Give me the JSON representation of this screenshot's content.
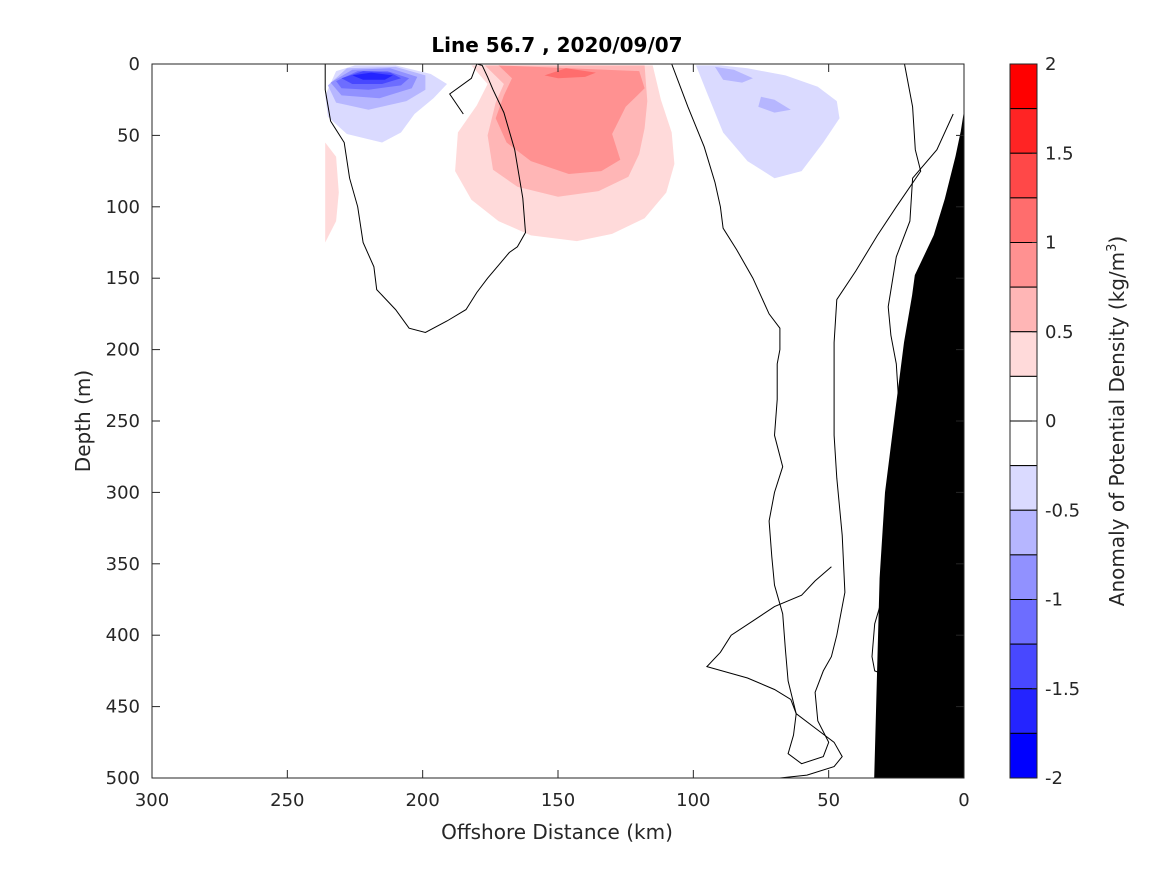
{
  "chart_data": {
    "type": "heatmap",
    "title": "Line 56.7 , 2020/09/07",
    "xlabel": "Offshore Distance (km)",
    "ylabel": "Depth (m)",
    "colorbar_label": "Anomaly of Potential Density (kg/m3)",
    "colorbar_label_parts": {
      "base": "Anomaly of Potential Density (kg/m",
      "sup": "3",
      "end": ")"
    },
    "xlim": [
      300,
      0
    ],
    "ylim": [
      0,
      500
    ],
    "clim": [
      -2,
      2
    ],
    "x_ticks": [
      300,
      250,
      200,
      150,
      100,
      50,
      0
    ],
    "x_tick_labels": [
      "300",
      "250",
      "200",
      "150",
      "100",
      "50",
      "0"
    ],
    "y_ticks": [
      0,
      50,
      100,
      150,
      200,
      250,
      300,
      350,
      400,
      450,
      500
    ],
    "y_tick_labels": [
      "0",
      "50",
      "100",
      "150",
      "200",
      "250",
      "300",
      "350",
      "400",
      "450",
      "500"
    ],
    "colorbar_ticks": [
      2,
      1.5,
      1,
      0.5,
      0,
      -0.5,
      -1,
      -1.5,
      -2
    ],
    "colorbar_tick_labels": [
      "2",
      "1.5",
      "1",
      "0.5",
      "0",
      "-0.5",
      "-1",
      "-1.5",
      "-2"
    ],
    "colorbar_levels": [
      {
        "from": 1.75,
        "to": 2.0,
        "color": "#ff0000"
      },
      {
        "from": 1.5,
        "to": 1.75,
        "color": "#ff2424"
      },
      {
        "from": 1.25,
        "to": 1.5,
        "color": "#ff4848"
      },
      {
        "from": 1.0,
        "to": 1.25,
        "color": "#ff6d6d"
      },
      {
        "from": 0.75,
        "to": 1.0,
        "color": "#ff9191"
      },
      {
        "from": 0.5,
        "to": 0.75,
        "color": "#ffb6b6"
      },
      {
        "from": 0.25,
        "to": 0.5,
        "color": "#ffdada"
      },
      {
        "from": 0.0,
        "to": 0.25,
        "color": "#ffffff"
      },
      {
        "from": -0.25,
        "to": 0.0,
        "color": "#ffffff"
      },
      {
        "from": -0.5,
        "to": -0.25,
        "color": "#dadaff"
      },
      {
        "from": -0.75,
        "to": -0.5,
        "color": "#b6b6ff"
      },
      {
        "from": -1.0,
        "to": -0.75,
        "color": "#9191ff"
      },
      {
        "from": -1.25,
        "to": -1.0,
        "color": "#6d6dff"
      },
      {
        "from": -1.5,
        "to": -1.25,
        "color": "#4848ff"
      },
      {
        "from": -1.75,
        "to": -1.5,
        "color": "#2424ff"
      },
      {
        "from": -2.0,
        "to": -1.75,
        "color": "#0000ff"
      }
    ],
    "anomaly_regions": [
      {
        "name": "negative-core-west",
        "color": "#dadaff",
        "points": [
          [
            236,
            22
          ],
          [
            232,
            5
          ],
          [
            225,
            1
          ],
          [
            210,
            1
          ],
          [
            197,
            7
          ],
          [
            191,
            14
          ],
          [
            196,
            24
          ],
          [
            203,
            35
          ],
          [
            208,
            48
          ],
          [
            215,
            55
          ],
          [
            228,
            49
          ],
          [
            235,
            37
          ]
        ]
      },
      {
        "name": "negative-core-west",
        "color": "#b6b6ff",
        "points": [
          [
            235,
            15
          ],
          [
            228,
            3
          ],
          [
            210,
            2
          ],
          [
            199,
            8
          ],
          [
            199,
            18
          ],
          [
            206,
            26
          ],
          [
            220,
            32
          ],
          [
            232,
            27
          ]
        ]
      },
      {
        "name": "negative-core-west",
        "color": "#9191ff",
        "points": [
          [
            234,
            13
          ],
          [
            226,
            4
          ],
          [
            212,
            3
          ],
          [
            202,
            9
          ],
          [
            204,
            17
          ],
          [
            216,
            24
          ],
          [
            230,
            22
          ]
        ]
      },
      {
        "name": "negative-core-west",
        "color": "#6d6dff",
        "points": [
          [
            232,
            12
          ],
          [
            224,
            5
          ],
          [
            213,
            5
          ],
          [
            205,
            10
          ],
          [
            208,
            15
          ],
          [
            220,
            18
          ],
          [
            230,
            17
          ]
        ]
      },
      {
        "name": "negative-core-west",
        "color": "#4848ff",
        "points": [
          [
            230,
            10
          ],
          [
            222,
            5
          ],
          [
            212,
            6
          ],
          [
            208,
            10
          ],
          [
            215,
            14
          ],
          [
            226,
            14
          ]
        ]
      },
      {
        "name": "negative-core-west",
        "color": "#2424ff",
        "points": [
          [
            226,
            8
          ],
          [
            219,
            6
          ],
          [
            211,
            8
          ],
          [
            214,
            11
          ],
          [
            222,
            11
          ]
        ]
      },
      {
        "name": "negative-west-edge",
        "color": "#ffdada",
        "points": [
          [
            236,
            55
          ],
          [
            232,
            65
          ],
          [
            231,
            90
          ],
          [
            232,
            110
          ],
          [
            236,
            125
          ]
        ]
      },
      {
        "name": "positive-eddy",
        "color": "#ffdada",
        "points": [
          [
            182,
            1
          ],
          [
            176,
            14
          ],
          [
            180,
            29
          ],
          [
            187,
            48
          ],
          [
            188,
            75
          ],
          [
            182,
            95
          ],
          [
            172,
            110
          ],
          [
            160,
            120
          ],
          [
            143,
            124
          ],
          [
            130,
            119
          ],
          [
            118,
            108
          ],
          [
            110,
            90
          ],
          [
            107,
            70
          ],
          [
            108,
            48
          ],
          [
            112,
            25
          ],
          [
            115,
            1
          ]
        ]
      },
      {
        "name": "positive-eddy",
        "color": "#ffb6b6",
        "points": [
          [
            177,
            1
          ],
          [
            170,
            14
          ],
          [
            173,
            27
          ],
          [
            176,
            50
          ],
          [
            174,
            74
          ],
          [
            165,
            86
          ],
          [
            150,
            93
          ],
          [
            135,
            89
          ],
          [
            124,
            79
          ],
          [
            120,
            63
          ],
          [
            118,
            45
          ],
          [
            117,
            26
          ],
          [
            118,
            1
          ]
        ]
      },
      {
        "name": "positive-eddy",
        "color": "#ff9191",
        "points": [
          [
            172,
            1
          ],
          [
            167,
            10
          ],
          [
            170,
            22
          ],
          [
            173,
            38
          ],
          [
            169,
            55
          ],
          [
            160,
            68
          ],
          [
            146,
            77
          ],
          [
            134,
            75
          ],
          [
            127,
            67
          ],
          [
            130,
            49
          ],
          [
            125,
            30
          ],
          [
            118,
            17
          ],
          [
            120,
            5
          ]
        ]
      },
      {
        "name": "positive-eddy",
        "color": "#ff6d6d",
        "points": [
          [
            155,
            8
          ],
          [
            147,
            3
          ],
          [
            136,
            6
          ],
          [
            140,
            9
          ],
          [
            150,
            10
          ]
        ]
      },
      {
        "name": "negative-core-east",
        "color": "#dadaff",
        "points": [
          [
            99,
            1
          ],
          [
            95,
            20
          ],
          [
            89,
            48
          ],
          [
            80,
            68
          ],
          [
            70,
            80
          ],
          [
            60,
            75
          ],
          [
            52,
            55
          ],
          [
            46,
            38
          ],
          [
            47,
            26
          ],
          [
            54,
            16
          ],
          [
            66,
            8
          ],
          [
            80,
            3
          ],
          [
            90,
            1
          ]
        ]
      },
      {
        "name": "negative-core-east",
        "color": "#b6b6ff",
        "points": [
          [
            92,
            2
          ],
          [
            85,
            4
          ],
          [
            78,
            10
          ],
          [
            82,
            13
          ],
          [
            89,
            11
          ]
        ]
      },
      {
        "name": "negative-core-east",
        "color": "#b6b6ff",
        "points": [
          [
            75,
            23
          ],
          [
            70,
            25
          ],
          [
            64,
            32
          ],
          [
            70,
            34
          ],
          [
            76,
            30
          ]
        ]
      }
    ],
    "zero_contours": [
      {
        "name": "zero-contour-west",
        "points": [
          [
            236,
            0
          ],
          [
            236,
            18
          ],
          [
            234,
            40
          ],
          [
            229,
            55
          ],
          [
            227,
            80
          ],
          [
            224,
            100
          ],
          [
            222,
            125
          ],
          [
            218,
            142
          ],
          [
            217,
            158
          ],
          [
            210,
            172
          ],
          [
            205,
            185
          ],
          [
            199,
            188
          ],
          [
            191,
            180
          ],
          [
            184,
            172
          ],
          [
            180,
            160
          ],
          [
            176,
            150
          ],
          [
            172,
            141
          ],
          [
            168,
            132
          ],
          [
            165,
            128
          ],
          [
            162,
            118
          ],
          [
            163,
            94
          ],
          [
            166,
            60
          ],
          [
            170,
            34
          ],
          [
            174,
            18
          ],
          [
            176,
            9
          ],
          [
            178,
            1
          ],
          [
            180,
            0
          ]
        ]
      },
      {
        "name": "zero-contour-mid-west",
        "points": [
          [
            180,
            0
          ],
          [
            182,
            10
          ],
          [
            190,
            21
          ],
          [
            185,
            35
          ]
        ]
      },
      {
        "name": "zero-contour-mid",
        "points": [
          [
            108,
            0
          ],
          [
            102,
            30
          ],
          [
            96,
            58
          ],
          [
            92,
            83
          ],
          [
            90,
            100
          ],
          [
            89,
            115
          ],
          [
            84,
            130
          ],
          [
            78,
            150
          ],
          [
            72,
            175
          ],
          [
            68,
            185
          ],
          [
            68,
            200
          ],
          [
            69,
            210
          ],
          [
            69,
            235
          ],
          [
            70,
            260
          ],
          [
            67,
            282
          ],
          [
            70,
            300
          ],
          [
            72,
            320
          ],
          [
            71,
            345
          ],
          [
            70,
            365
          ],
          [
            67,
            385
          ],
          [
            66,
            410
          ],
          [
            65,
            432
          ],
          [
            62,
            455
          ],
          [
            55,
            465
          ],
          [
            48,
            475
          ],
          [
            45,
            485
          ],
          [
            48,
            492
          ],
          [
            58,
            498
          ],
          [
            68,
            500
          ],
          [
            80,
            502
          ]
        ]
      },
      {
        "name": "zero-contour-east",
        "points": [
          [
            22,
            0
          ],
          [
            19,
            30
          ],
          [
            18,
            60
          ],
          [
            16,
            75
          ],
          [
            25,
            100
          ],
          [
            32,
            120
          ],
          [
            40,
            145
          ],
          [
            47,
            165
          ],
          [
            48,
            195
          ],
          [
            48,
            220
          ],
          [
            48,
            260
          ],
          [
            47,
            290
          ],
          [
            45,
            330
          ],
          [
            44,
            370
          ],
          [
            47,
            400
          ],
          [
            49,
            415
          ],
          [
            52,
            425
          ],
          [
            55,
            440
          ],
          [
            54,
            460
          ],
          [
            50,
            475
          ],
          [
            52,
            485
          ],
          [
            60,
            490
          ],
          [
            65,
            483
          ],
          [
            63,
            470
          ],
          [
            62,
            455
          ],
          [
            64,
            445
          ],
          [
            70,
            438
          ],
          [
            80,
            430
          ],
          [
            95,
            422
          ],
          [
            90,
            412
          ],
          [
            86,
            400
          ],
          [
            78,
            390
          ],
          [
            70,
            380
          ],
          [
            60,
            372
          ],
          [
            55,
            362
          ],
          [
            49,
            352
          ]
        ]
      },
      {
        "name": "zero-contour-east-coast",
        "points": [
          [
            4,
            35
          ],
          [
            10,
            60
          ],
          [
            19,
            80
          ],
          [
            20,
            110
          ],
          [
            25,
            135
          ],
          [
            28,
            170
          ],
          [
            27,
            190
          ],
          [
            25,
            210
          ],
          [
            24,
            240
          ],
          [
            23,
            270
          ],
          [
            24,
            300
          ],
          [
            25,
            330
          ],
          [
            28,
            360
          ],
          [
            33,
            392
          ],
          [
            34,
            415
          ],
          [
            33,
            425
          ],
          [
            29,
            428
          ],
          [
            26,
            438
          ],
          [
            25,
            455
          ],
          [
            26,
            470
          ],
          [
            33,
            500
          ]
        ]
      }
    ],
    "bathymetry": {
      "name": "seafloor-shelf",
      "color": "#000000",
      "points": [
        [
          0,
          35
        ],
        [
          0,
          500
        ],
        [
          33,
          500
        ],
        [
          31,
          360
        ],
        [
          29,
          300
        ],
        [
          25,
          240
        ],
        [
          22,
          195
        ],
        [
          19,
          162
        ],
        [
          18,
          148
        ],
        [
          11,
          120
        ],
        [
          7,
          95
        ],
        [
          3,
          65
        ],
        [
          1,
          47
        ]
      ]
    }
  }
}
